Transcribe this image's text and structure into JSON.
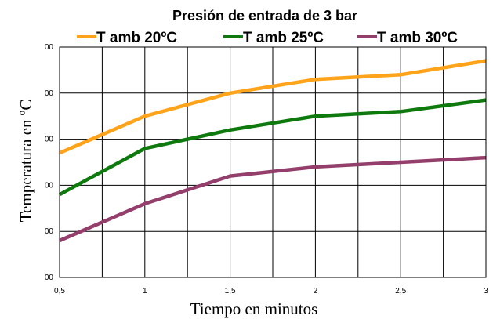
{
  "chart_data": {
    "type": "line",
    "title": "Presión de entrada de 3 bar",
    "xlabel": "Tiempo en minutos",
    "ylabel": "Temperatura en ºC",
    "x": [
      0.5,
      1,
      1.5,
      2,
      2.5,
      3
    ],
    "x_tick_labels": [
      "0,5",
      "1",
      "1,5",
      "2",
      "2,5",
      "3"
    ],
    "y_tick_labels": [
      "00",
      "00",
      "00",
      "00",
      "00",
      "00"
    ],
    "xlim": [
      0.5,
      3
    ],
    "ylim": [
      0,
      5
    ],
    "grid": true,
    "legend_position": "top",
    "series": [
      {
        "name": "T amb 20ºC",
        "color": "#ffa31a",
        "values": [
          2.7,
          3.5,
          4.0,
          4.3,
          4.4,
          4.7
        ]
      },
      {
        "name": "T amb 25ºC",
        "color": "#0e7a0d",
        "values": [
          1.8,
          2.8,
          3.2,
          3.5,
          3.6,
          3.85
        ]
      },
      {
        "name": "T amb 30ºC",
        "color": "#943e6b",
        "values": [
          0.8,
          1.6,
          2.2,
          2.4,
          2.5,
          2.6
        ]
      }
    ]
  }
}
